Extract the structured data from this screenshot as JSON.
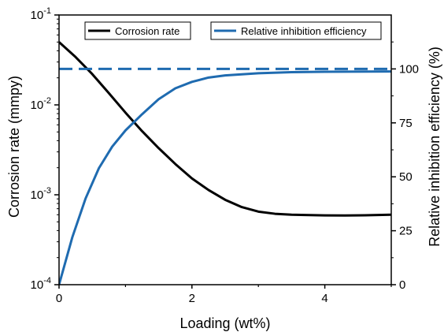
{
  "chart_data": {
    "type": "line",
    "xlabel": "Loading (wt%)",
    "ylabel_left": "Corrosion rate (mmpy)",
    "ylabel_right": "Relative inhibition efficiency (%)",
    "xlim": [
      0,
      5
    ],
    "ylim_left": [
      0.0001,
      0.1
    ],
    "y_left_scale": "log",
    "ylim_right": [
      0,
      125
    ],
    "x_ticks": [
      "0",
      "2",
      "4"
    ],
    "x_tick_values": [
      0,
      2,
      4
    ],
    "y_left_ticks": [
      {
        "value": 0.0001,
        "base": "10",
        "exp": "-4"
      },
      {
        "value": 0.001,
        "base": "10",
        "exp": "-3"
      },
      {
        "value": 0.01,
        "base": "10",
        "exp": "-2"
      },
      {
        "value": 0.1,
        "base": "10",
        "exp": "-1"
      }
    ],
    "y_right_ticks": [
      "0",
      "25",
      "50",
      "75",
      "100"
    ],
    "y_right_tick_values": [
      0,
      25,
      50,
      75,
      100
    ],
    "legend_placement": "top",
    "series": [
      {
        "name": "Corrosion rate",
        "axis": "left",
        "color": "#000000",
        "style": "solid",
        "points": [
          [
            0,
            0.05
          ],
          [
            0.25,
            0.034
          ],
          [
            0.5,
            0.022
          ],
          [
            0.75,
            0.0135
          ],
          [
            1.0,
            0.0082
          ],
          [
            1.25,
            0.0051
          ],
          [
            1.5,
            0.0033
          ],
          [
            1.75,
            0.0022
          ],
          [
            2.0,
            0.00152
          ],
          [
            2.25,
            0.00113
          ],
          [
            2.5,
            0.00088
          ],
          [
            2.75,
            0.00073
          ],
          [
            3.0,
            0.00065
          ],
          [
            3.25,
            0.000615
          ],
          [
            3.5,
            0.0006
          ],
          [
            4.0,
            0.00059
          ],
          [
            4.3,
            0.000588
          ],
          [
            4.6,
            0.000592
          ],
          [
            5.0,
            0.0006
          ]
        ]
      },
      {
        "name": "Relative inhibition efficiency",
        "axis": "right",
        "color": "#1f6bb0",
        "style": "solid",
        "points": [
          [
            0,
            0
          ],
          [
            0.2,
            22
          ],
          [
            0.4,
            40
          ],
          [
            0.6,
            54
          ],
          [
            0.8,
            64
          ],
          [
            1.0,
            71.5
          ],
          [
            1.25,
            79
          ],
          [
            1.5,
            86
          ],
          [
            1.75,
            91
          ],
          [
            2.0,
            94
          ],
          [
            2.25,
            96
          ],
          [
            2.5,
            97
          ],
          [
            3.0,
            98
          ],
          [
            3.5,
            98.5
          ],
          [
            4.0,
            98.7
          ],
          [
            5.0,
            98.8
          ]
        ]
      },
      {
        "name": "",
        "axis": "right",
        "color": "#1f6bb0",
        "style": "dashed",
        "points": [
          [
            0,
            100
          ],
          [
            5,
            100
          ]
        ]
      }
    ]
  }
}
